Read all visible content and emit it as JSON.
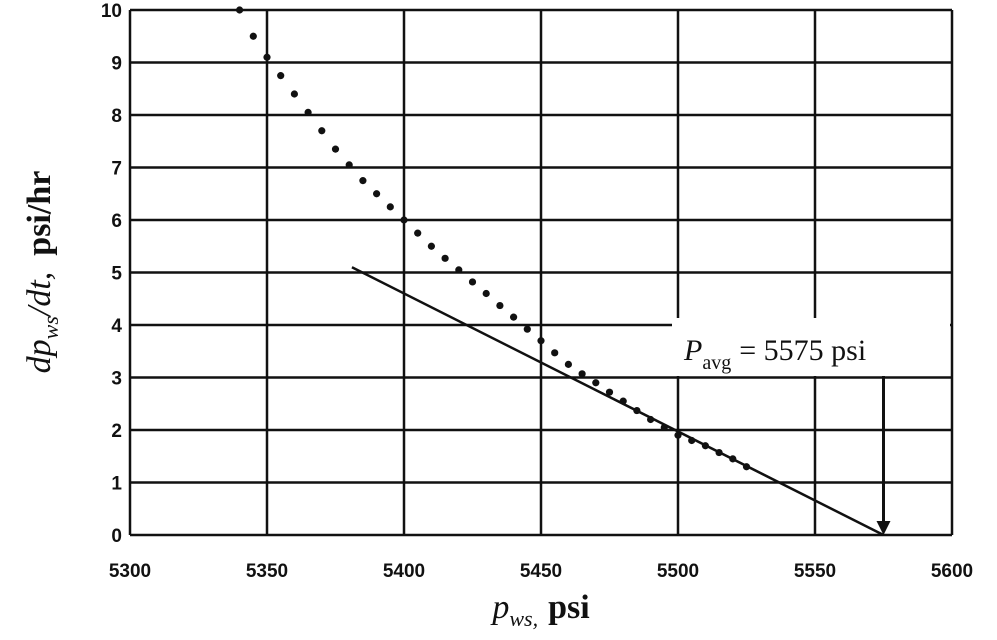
{
  "chart_data": {
    "type": "scatter",
    "xlabel": [
      "p",
      "ws,",
      "psi"
    ],
    "ylabel": [
      "dp",
      "ws",
      "/dt,",
      "psi/hr"
    ],
    "annotation": [
      "P",
      "avg",
      "= 5575 psi"
    ],
    "xlim": [
      5300,
      5600
    ],
    "xticks": [
      5300,
      5350,
      5400,
      5450,
      5500,
      5550,
      5600
    ],
    "ylim": [
      0,
      10
    ],
    "yticks": [
      0,
      1,
      2,
      3,
      4,
      5,
      6,
      7,
      8,
      9,
      10
    ],
    "grid": true,
    "series": [
      {
        "style": "dotted",
        "color": "#111",
        "x": [
          5340,
          5345,
          5350,
          5355,
          5360,
          5365,
          5370,
          5375,
          5380,
          5385,
          5390,
          5395,
          5400,
          5405,
          5410,
          5415,
          5420,
          5425,
          5430,
          5435,
          5440,
          5445,
          5450,
          5455,
          5460,
          5465,
          5470,
          5475,
          5480,
          5485,
          5490,
          5495,
          5500,
          5505,
          5510,
          5515,
          5520,
          5525
        ],
        "values": [
          10.0,
          9.5,
          9.1,
          8.75,
          8.4,
          8.05,
          7.7,
          7.35,
          7.05,
          6.75,
          6.5,
          6.25,
          6.0,
          5.75,
          5.5,
          5.27,
          5.05,
          4.82,
          4.6,
          4.37,
          4.15,
          3.92,
          3.7,
          3.47,
          3.25,
          3.07,
          2.9,
          2.72,
          2.55,
          2.37,
          2.2,
          2.05,
          1.9,
          1.8,
          1.7,
          1.57,
          1.45,
          1.3
        ]
      },
      {
        "style": "line",
        "color": "#111",
        "x": [
          5381,
          5575
        ],
        "values": [
          5.1,
          0
        ]
      }
    ]
  }
}
